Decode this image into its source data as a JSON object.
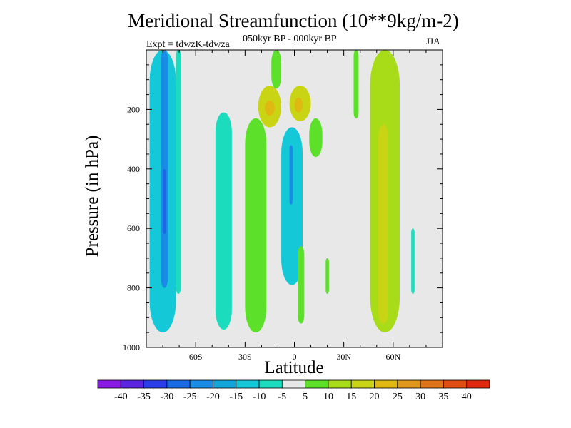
{
  "chart_data": {
    "type": "contour",
    "title": "Meridional Streamfunction (10**9kg/m-2)",
    "subtitle": "050kyr BP - 000kyr BP",
    "experiment": "Expt = tdwzK-tdwza",
    "season": "JJA",
    "xlabel": "Latitude",
    "ylabel": "Pressure (in hPa)",
    "xlim": [
      -90,
      90
    ],
    "ylim": [
      1000,
      0
    ],
    "x_ticks": [
      {
        "value": -60,
        "label": "60S"
      },
      {
        "value": -30,
        "label": "30S"
      },
      {
        "value": 0,
        "label": "0"
      },
      {
        "value": 30,
        "label": "30N"
      },
      {
        "value": 60,
        "label": "60N"
      }
    ],
    "y_ticks": [
      {
        "value": 200,
        "label": "200"
      },
      {
        "value": 400,
        "label": "400"
      },
      {
        "value": 600,
        "label": "600"
      },
      {
        "value": 800,
        "label": "800"
      },
      {
        "value": 1000,
        "label": "1000"
      }
    ],
    "background_color": "#e8e8e8",
    "colorbar": {
      "labels": [
        "-40",
        "-35",
        "-30",
        "-25",
        "-20",
        "-15",
        "-10",
        "-5",
        "5",
        "10",
        "15",
        "20",
        "25",
        "30",
        "35",
        "40"
      ],
      "colors": [
        "#8a1be6",
        "#5a24e0",
        "#2a3de8",
        "#1a6ae6",
        "#1b8ce6",
        "#12a6d8",
        "#14c8d8",
        "#1bdcbc",
        "#e8e8e8",
        "#5ce02a",
        "#a8dc18",
        "#c8d414",
        "#e0b812",
        "#e0981a",
        "#e07418",
        "#e04e14",
        "#e02a10"
      ]
    },
    "regions": [
      {
        "name": "sh-polar-cell-negative",
        "level": -15,
        "lat": [
          -88,
          -72
        ],
        "p": [
          0,
          950
        ]
      },
      {
        "name": "sh-polar-core",
        "level": -25,
        "lat": [
          -81,
          -77
        ],
        "p": [
          0,
          800
        ]
      },
      {
        "name": "sh-polar-core-deep",
        "level": -30,
        "lat": [
          -80,
          -78
        ],
        "p": [
          400,
          620
        ]
      },
      {
        "name": "sh-polar-narrow",
        "level": -10,
        "lat": [
          -72,
          -69
        ],
        "p": [
          0,
          820
        ]
      },
      {
        "name": "sh-midlat-negative",
        "level": -10,
        "lat": [
          -48,
          -38
        ],
        "p": [
          210,
          940
        ]
      },
      {
        "name": "sh-subtropic-positive",
        "level": 5,
        "lat": [
          -30,
          -17
        ],
        "p": [
          230,
          950
        ]
      },
      {
        "name": "upper-positive-west",
        "level": 15,
        "lat": [
          -22,
          -8
        ],
        "p": [
          120,
          260
        ]
      },
      {
        "name": "upper-positive-west-core",
        "level": 20,
        "lat": [
          -18,
          -12
        ],
        "p": [
          170,
          220
        ]
      },
      {
        "name": "upper-positive-east",
        "level": 15,
        "lat": [
          -3,
          10
        ],
        "p": [
          120,
          240
        ]
      },
      {
        "name": "upper-positive-east-core",
        "level": 20,
        "lat": [
          0,
          5
        ],
        "p": [
          160,
          210
        ]
      },
      {
        "name": "upper-positive-top",
        "level": 5,
        "lat": [
          -14,
          -8
        ],
        "p": [
          0,
          130
        ]
      },
      {
        "name": "equatorial-negative",
        "level": -15,
        "lat": [
          -8,
          5
        ],
        "p": [
          260,
          790
        ]
      },
      {
        "name": "equatorial-negative-core",
        "level": -25,
        "lat": [
          -3,
          -1
        ],
        "p": [
          320,
          520
        ]
      },
      {
        "name": "nh-tropic-positive",
        "level": 5,
        "lat": [
          9,
          17
        ],
        "p": [
          230,
          360
        ]
      },
      {
        "name": "nh-tropic-lower",
        "level": 5,
        "lat": [
          2,
          6
        ],
        "p": [
          660,
          920
        ]
      },
      {
        "name": "nh-subtropic-narrow",
        "level": 5,
        "lat": [
          19,
          21
        ],
        "p": [
          700,
          820
        ]
      },
      {
        "name": "nh-narrow-top",
        "level": 5,
        "lat": [
          36,
          39
        ],
        "p": [
          0,
          230
        ]
      },
      {
        "name": "nh-midlat-positive",
        "level": 10,
        "lat": [
          46,
          64
        ],
        "p": [
          0,
          950
        ]
      },
      {
        "name": "nh-midlat-core",
        "level": 15,
        "lat": [
          51,
          57
        ],
        "p": [
          250,
          920
        ]
      },
      {
        "name": "nh-polar-narrow",
        "level": -10,
        "lat": [
          71,
          73
        ],
        "p": [
          600,
          820
        ]
      }
    ]
  }
}
